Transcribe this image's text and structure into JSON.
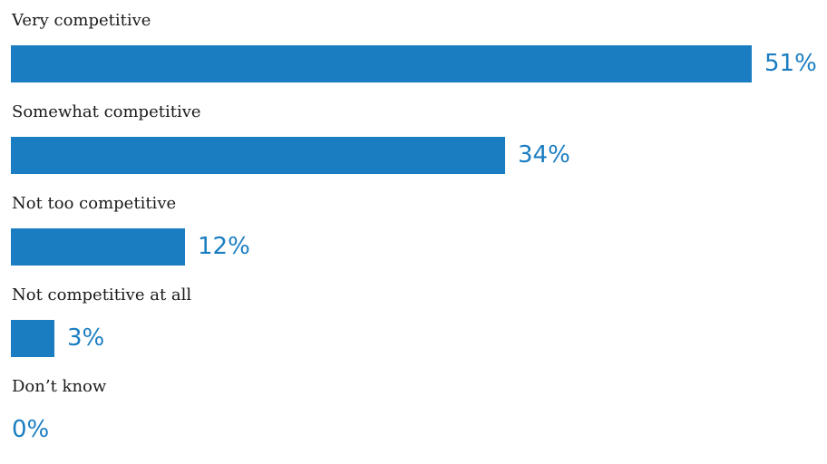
{
  "chart_data": {
    "type": "bar",
    "orientation": "horizontal",
    "categories": [
      "Very competitive",
      "Somewhat competitive",
      "Not too competitive",
      "Not competitive at all",
      "Don’t know"
    ],
    "values": [
      51,
      34,
      12,
      3,
      0
    ],
    "value_labels": [
      "51%",
      "34%",
      "12%",
      "3%",
      "0%"
    ],
    "xlim": [
      0,
      51
    ],
    "grid": false,
    "colors": {
      "bar": "#1a7dc1",
      "value_text": "#1a7dc1",
      "label_text": "#1a1a1a"
    }
  }
}
